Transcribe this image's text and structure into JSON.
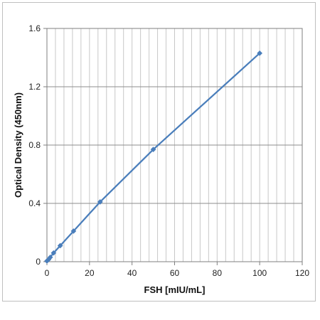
{
  "chart_data": {
    "type": "line",
    "title": "",
    "xlabel": "FSH [mIU/mL]",
    "ylabel": "Optical Density (450nm)",
    "xlim": [
      0,
      120
    ],
    "ylim": [
      0,
      1.6
    ],
    "x_ticks": [
      "0",
      "20",
      "40",
      "60",
      "80",
      "100",
      "120"
    ],
    "y_ticks": [
      "0",
      "0.4",
      "0.8",
      "1.2",
      "1.6"
    ],
    "x_tick_values": [
      0,
      20,
      40,
      60,
      80,
      100,
      120
    ],
    "y_tick_values": [
      0,
      0.4,
      0.8,
      1.2,
      1.6
    ],
    "x_minor_step": 4,
    "grid": true,
    "legend": "none",
    "series": [
      {
        "color": "#4a7ebb",
        "marker": "diamond",
        "x": [
          0,
          0.78,
          1.56,
          3.13,
          6.25,
          12.5,
          25,
          50,
          100
        ],
        "y": [
          0.005,
          0.015,
          0.03,
          0.06,
          0.11,
          0.21,
          0.41,
          0.77,
          1.43
        ]
      }
    ]
  }
}
